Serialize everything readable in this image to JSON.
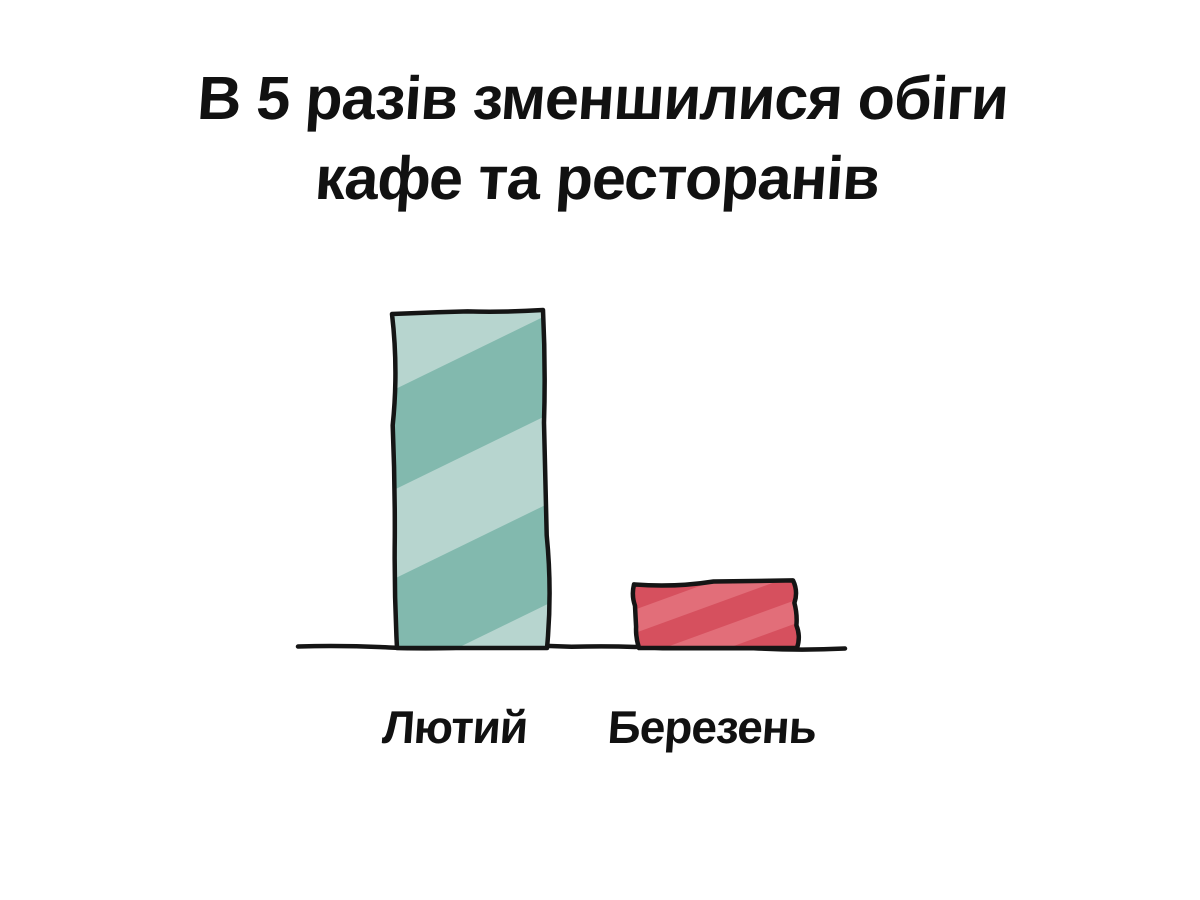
{
  "chart_data": {
    "type": "bar",
    "title": "В 5 разів зменшилися обіги кафе та ресторанів",
    "title_lines": [
      "В 5 разів зменшилися обіги",
      "кафе та ресторанів"
    ],
    "categories": [
      "Лютий",
      "Березень"
    ],
    "values": [
      5,
      1
    ],
    "series": [
      {
        "name": "Лютий",
        "value": 5,
        "fill": "#b7d5cf",
        "stripe": "#82b9ae"
      },
      {
        "name": "Березень",
        "value": 1,
        "fill": "#d6505e",
        "stripe": "#e26e79"
      }
    ],
    "xlabel": "",
    "ylabel": "",
    "grid": false,
    "legend": false,
    "y_axis_visible": false,
    "baseline_visible": true,
    "colors": {
      "background": "#ffffff",
      "text": "#111111",
      "outline": "#151515",
      "bar_february_fill": "#b7d5cf",
      "bar_february_stripe": "#82b9ae",
      "bar_march_fill": "#d6505e",
      "bar_march_stripe": "#e26e79"
    }
  }
}
